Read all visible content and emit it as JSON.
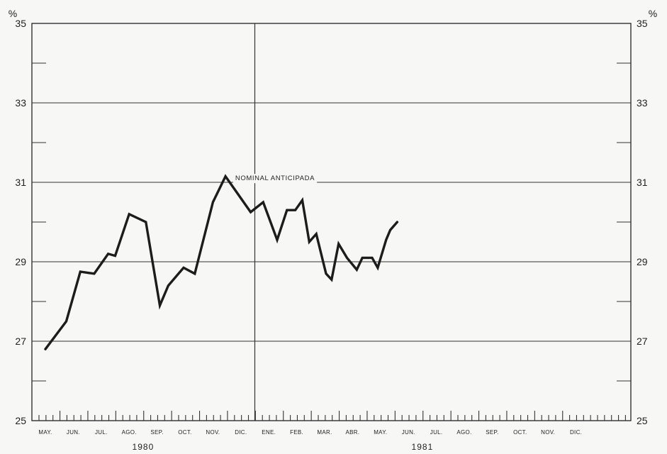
{
  "chart_data": {
    "type": "line",
    "y_unit_left": "%",
    "y_unit_right": "%",
    "ylim": [
      25,
      35
    ],
    "y_ticks": [
      25,
      27,
      29,
      31,
      33,
      35
    ],
    "y_tick_labels": [
      "25",
      "27",
      "29",
      "31",
      "33",
      "35"
    ],
    "months": [
      "MAY.",
      "JUN.",
      "JUL.",
      "AGO.",
      "SEP.",
      "OCT.",
      "NOV.",
      "DIC.",
      "ENE.",
      "FEB.",
      "MAR.",
      "ABR.",
      "MAY.",
      "JUN.",
      "JUL.",
      "AGO.",
      "SEP.",
      "OCT.",
      "NOV.",
      "DIC."
    ],
    "years": [
      {
        "label": "1980",
        "start_month_index": 0,
        "end_month_index": 7
      },
      {
        "label": "1981",
        "start_month_index": 8,
        "end_month_index": 19
      }
    ],
    "grid": "horizontal",
    "series": [
      {
        "name": "NOMINAL ANTICIPADA",
        "x_month": [
          0.0,
          0.75,
          1.25,
          1.75,
          2.25,
          2.5,
          3.0,
          3.6,
          4.1,
          4.4,
          4.95,
          5.35,
          6.0,
          6.45,
          6.85,
          7.35,
          7.8,
          8.3,
          8.65,
          8.95,
          9.2,
          9.45,
          9.7,
          10.05,
          10.25,
          10.5,
          10.8,
          11.15,
          11.35,
          11.7,
          11.9,
          12.2,
          12.35,
          12.6
        ],
        "y": [
          26.8,
          27.5,
          28.75,
          28.7,
          29.2,
          29.15,
          30.2,
          30.0,
          27.9,
          28.4,
          28.85,
          28.7,
          30.5,
          31.15,
          30.75,
          30.25,
          30.5,
          29.55,
          30.3,
          30.3,
          30.55,
          29.5,
          29.7,
          28.7,
          28.55,
          29.45,
          29.1,
          28.8,
          29.1,
          29.1,
          28.85,
          29.55,
          29.8,
          30.0
        ]
      }
    ],
    "annotation": {
      "text": "NOMINAL ANTICIPADA",
      "x_month": 6.8,
      "y": 31.05
    },
    "vertical_line_after_month_index": 7
  }
}
